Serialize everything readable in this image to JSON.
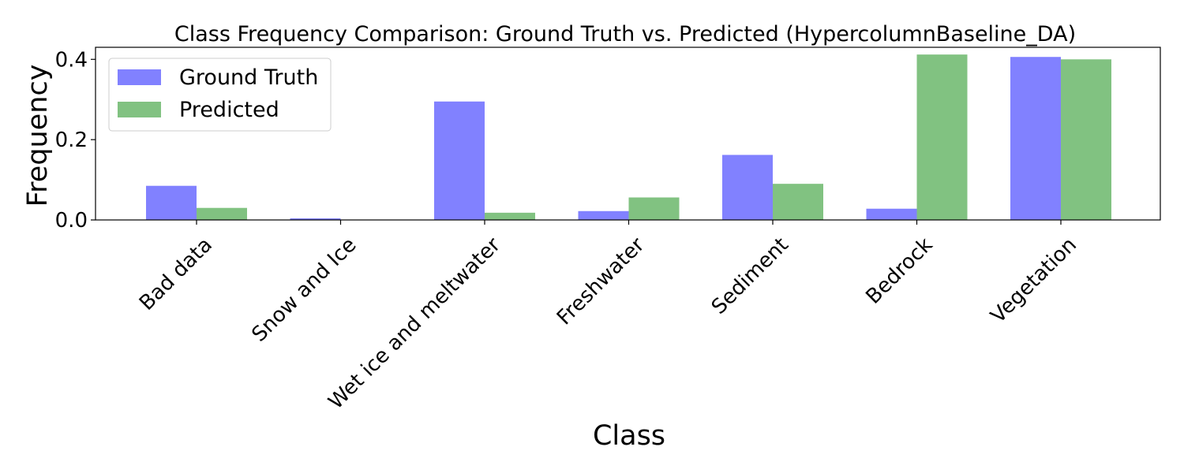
{
  "chart_data": {
    "type": "bar",
    "title": "Class Frequency Comparison: Ground Truth vs. Predicted (HypercolumnBaseline_DA)",
    "xlabel": "Class",
    "ylabel": "Frequency",
    "categories": [
      "Bad data",
      "Snow and Ice",
      "Wet ice and meltwater",
      "Freshwater",
      "Sediment",
      "Bedrock",
      "Vegetation"
    ],
    "series": [
      {
        "name": "Ground Truth",
        "color": "#4b4bff",
        "values": [
          0.085,
          0.004,
          0.295,
          0.022,
          0.162,
          0.028,
          0.406
        ]
      },
      {
        "name": "Predicted",
        "color": "#4ba84b",
        "values": [
          0.03,
          0.0,
          0.018,
          0.056,
          0.09,
          0.412,
          0.4
        ]
      }
    ],
    "ylim": [
      0,
      0.43
    ],
    "yticks": [
      0.0,
      0.2,
      0.4
    ],
    "ytick_labels": [
      "0.0",
      "0.2",
      "0.4"
    ],
    "grid": false,
    "legend_position": "top-left"
  }
}
